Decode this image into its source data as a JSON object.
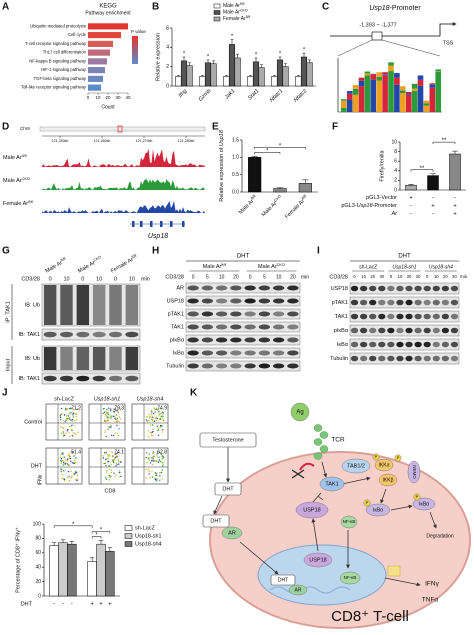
{
  "chart_data": [
    {
      "panel_label": "A",
      "type": "barh",
      "title": "KEGG",
      "subtitle": "Pathway enrichment",
      "categories": [
        "Ubiquitin mediated proteolysis",
        "Cell cycle",
        "T-cell receptor signaling pathway",
        "Th17 cell differentiation",
        "NF-kappa B signaling pathway",
        "HIF-1 signaling pathway",
        "TGF-beta signaling pathway",
        "Toll-like receptor signaling pathway"
      ],
      "values": [
        40,
        33,
        25,
        22,
        19,
        17,
        15,
        13
      ],
      "colors": [
        "#e2372c",
        "#e0473a",
        "#d65a58",
        "#c0687c",
        "#9d78a0",
        "#7f82b6",
        "#6b88c2",
        "#5b8cca"
      ],
      "xlabel": "Count",
      "xlim": [
        0,
        40
      ],
      "xticks": [
        0,
        10,
        20,
        30,
        40
      ],
      "legend_title": "P value"
    },
    {
      "panel_label": "B",
      "type": "bar",
      "ylabel": "Relative expression",
      "categories": [
        "Ifng",
        "Gzmb",
        "Jak1",
        "Stat1",
        "Nfatc1",
        "Nfatc2"
      ],
      "series": [
        {
          "name": "Male Ar",
          "sup": "fl/fl",
          "color": "#ffffff",
          "values": [
            1,
            1,
            1,
            1,
            1,
            1
          ],
          "errors": [
            0.1,
            0.1,
            0.1,
            0.1,
            0.1,
            0.1
          ]
        },
        {
          "name": "Male Ar",
          "sup": "CKO",
          "color": "#555555",
          "values": [
            2.6,
            2.4,
            4.3,
            2.5,
            2.7,
            3.0
          ],
          "errors": [
            0.4,
            0.3,
            0.5,
            0.4,
            0.3,
            0.4
          ]
        },
        {
          "name": "Female Ar",
          "sup": "fl/fl",
          "color": "#aaaaaa",
          "values": [
            2.1,
            2.3,
            2.9,
            1.9,
            2.0,
            2.4
          ],
          "errors": [
            0.3,
            0.3,
            0.4,
            0.3,
            0.3,
            0.3
          ]
        }
      ],
      "ylim": [
        0,
        6
      ],
      "yticks": [
        0,
        2,
        4,
        6
      ],
      "significance": [
        "*",
        "*",
        "*",
        "*",
        "*",
        "*"
      ]
    },
    {
      "panel_label": "E",
      "type": "bar",
      "ylabel": "Relative expression of ",
      "ylabel_italic": "Usp18",
      "categories": [
        "Male Ar",
        "Male Ar",
        "Female Ar"
      ],
      "category_sups": [
        "fl/fl",
        "CKO",
        "fl/fl"
      ],
      "values": [
        1.0,
        0.1,
        0.25
      ],
      "errors": [
        0.03,
        0.02,
        0.1
      ],
      "colors": [
        "#111111",
        "#888888",
        "#888888"
      ],
      "ylim": [
        0,
        1.5
      ],
      "yticks": [
        {
          "value": 0,
          "label": "0.0"
        },
        {
          "value": 0.5,
          "label": "0.5"
        },
        {
          "value": 1,
          "label": "1.0"
        },
        {
          "value": 1.5,
          "label": "1.5"
        }
      ],
      "brackets": [
        {
          "from": 0,
          "to": 1,
          "label": "*"
        },
        {
          "from": 0,
          "to": 2,
          "label": "*"
        }
      ]
    },
    {
      "panel_label": "F",
      "type": "bar",
      "ylabel": "Firefly/renilla",
      "values": [
        1,
        3,
        7.5
      ],
      "errors": [
        0.2,
        0.4,
        0.6
      ],
      "colors": [
        "#aaaaaa",
        "#111111",
        "#888888"
      ],
      "ylim": [
        0,
        10
      ],
      "yticks": [
        0,
        2,
        4,
        6,
        8,
        10
      ],
      "rows": [
        {
          "label": "pGL3-Vector",
          "marks": [
            "+",
            "-",
            "-"
          ]
        },
        {
          "label": "pGL3-",
          "label_italic": "Usp18",
          "label_rest": "-Promoter",
          "marks": [
            "-",
            "+",
            "+"
          ]
        },
        {
          "label": "Ar",
          "marks": [
            "-",
            "-",
            "+"
          ]
        }
      ],
      "brackets": [
        {
          "from": 0,
          "to": 1,
          "label": "**"
        },
        {
          "from": 1,
          "to": 2,
          "label": "**"
        }
      ]
    },
    {
      "type": "bar",
      "ylabel": "Percentage of CD8⁺ IFNγ⁺",
      "series": [
        {
          "name": "sh-LacZ",
          "color": "#ffffff",
          "values": [
            70,
            48
          ],
          "errors": [
            4,
            5
          ]
        },
        {
          "name": "Usp18-sh1",
          "color": "#cccccc",
          "values": [
            74,
            72
          ],
          "errors": [
            4,
            5
          ]
        },
        {
          "name": "Usp18-sh4",
          "color": "#777777",
          "values": [
            72,
            62
          ],
          "errors": [
            4,
            5
          ]
        }
      ],
      "ylim": [
        0,
        100
      ],
      "yticks": [
        0,
        20,
        40,
        60,
        80,
        100
      ],
      "row_label": "DHT",
      "row_marks": [
        "-",
        "-",
        "-",
        "+",
        "+",
        "+"
      ],
      "brackets": [
        {
          "from": 3,
          "to": 4,
          "label": "*"
        },
        {
          "from": 3,
          "to": 5,
          "label": "*"
        },
        {
          "from": 0,
          "to": 3,
          "label": "*"
        }
      ]
    }
  ],
  "promoter": {
    "panel_label": "C",
    "title_gene": "Usp18",
    "title_rest": "-Promoter",
    "region": "-1,393 ~ -1,377",
    "tss": "TSS"
  },
  "tracks": {
    "panel_label": "D",
    "chromosome": "Chr9",
    "coordinates": [
      "121,250kb",
      "121,260kb",
      "121,270kb",
      "121,280kb"
    ],
    "tracks": [
      {
        "name": "Male Ar",
        "sup": "fl/fl",
        "color": "#d6243a"
      },
      {
        "name": "Male Ar",
        "sup": "CKO",
        "color": "#2c9a3a"
      },
      {
        "name": "Female Ar",
        "sup": "fl/fl",
        "color": "#2446a8"
      }
    ],
    "gene": "Usp18"
  },
  "blot_g": {
    "panel_label": "G",
    "groups": [
      {
        "name": "Male Ar",
        "sup": "fl/fl"
      },
      {
        "name": "Male Ar",
        "sup": "CKO"
      },
      {
        "name": "Female Ar",
        "sup": "fl/fl"
      }
    ],
    "stimulus": "CD3/28",
    "times": [
      0,
      10,
      0,
      10,
      0,
      10
    ],
    "time_unit": "min",
    "sections": [
      {
        "label": "IP: TAK1",
        "rows": [
          "IB: Ub",
          "IB: TAK1"
        ]
      },
      {
        "label": "Input",
        "rows": [
          "IB: Ub",
          "IB: TAK1"
        ]
      }
    ]
  },
  "blot_h": {
    "panel_label": "H",
    "treatment": "DHT",
    "groups": [
      {
        "name": "Male Ar",
        "sup": "fl/fl"
      },
      {
        "name": "Male Ar",
        "sup": "CKO"
      }
    ],
    "stimulus": "CD3/28",
    "times": [
      0,
      5,
      10,
      20,
      0,
      5,
      10,
      20
    ],
    "time_unit": "min",
    "rows": [
      "AR",
      "USP18",
      "pTAK1",
      "TAK1",
      "pIκBα",
      "IκBα",
      "Tubulin"
    ]
  },
  "blot_i": {
    "panel_label": "I",
    "treatment": "DHT",
    "groups": [
      "sh-LacZ",
      "Usp18-sh1",
      "Usp18-sh4"
    ],
    "stimulus": "CD3/28",
    "times": [
      0,
      10,
      20,
      30,
      0,
      10,
      20,
      30,
      0,
      10,
      20,
      30
    ],
    "time_unit": "min",
    "rows": [
      "USP18",
      "pTAK1",
      "TAK1",
      "pIκBα",
      "IκBα",
      "Tubulin"
    ]
  },
  "flow": {
    "panel_label": "J",
    "columns": [
      "sh-LacZ",
      "Usp18-sh1",
      "Usp18-sh4"
    ],
    "rows": [
      "Control",
      "DHT"
    ],
    "percentages": [
      [
        71.2,
        79.3,
        74.9
      ],
      [
        51.4,
        74.1,
        62.8
      ]
    ],
    "x_label": "CD8",
    "y_label": "IFNγ"
  },
  "diagram": {
    "panel_label": "K",
    "nodes": [
      "Ag",
      "TCR",
      "TAB1/2",
      "TAK1",
      "IKKα",
      "IKKβ",
      "NEMO",
      "Testosterone",
      "DHT",
      "DHT",
      "AR",
      "USP18",
      "NF-κB",
      "IκBα",
      "IκBα",
      "Degradation",
      "DHT",
      "AR",
      "USP18",
      "NF-κB",
      "IFNγ",
      "TNFα",
      "CD8⁺ T-cell",
      "P",
      "P",
      "P",
      "P"
    ]
  }
}
